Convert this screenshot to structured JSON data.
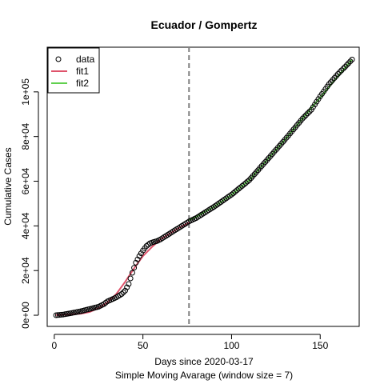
{
  "chart_data": {
    "type": "scatter",
    "title": "Ecuador / Gompertz",
    "xlabel": "Days since 2020-03-17",
    "xlabel2": "Simple Moving Avarage (window size = 7)",
    "ylabel": "Cumulative Cases",
    "xlim": [
      -4,
      172
    ],
    "ylim": [
      -5000,
      120000
    ],
    "x_ticks": [
      0,
      50,
      100,
      150
    ],
    "x_tick_labels": [
      "0",
      "50",
      "100",
      "150"
    ],
    "y_ticks": [
      0,
      20000,
      40000,
      60000,
      80000,
      100000
    ],
    "y_tick_labels": [
      "0e+00",
      "2e+04",
      "4e+04",
      "6e+04",
      "8e+04",
      "1e+05"
    ],
    "vline_x": 76,
    "vline_color": "#808080",
    "legend_position": "top-left",
    "legend": [
      {
        "label": "data",
        "type": "point",
        "color": "#000000"
      },
      {
        "label": "fit1",
        "type": "line",
        "color": "#DF536B"
      },
      {
        "label": "fit2",
        "type": "line",
        "color": "#61D04F"
      }
    ],
    "data_points": {
      "x": [
        1,
        5,
        10,
        15,
        20,
        25,
        28,
        30,
        35,
        38,
        40,
        42,
        44,
        46,
        48,
        50,
        52,
        54,
        56,
        58,
        60,
        65,
        70,
        76,
        80,
        90,
        100,
        110,
        120,
        130,
        140,
        145,
        150,
        155,
        160,
        165,
        168
      ],
      "y": [
        0,
        300,
        1000,
        1800,
        2800,
        3800,
        5000,
        6200,
        8000,
        9500,
        11000,
        14000,
        19000,
        23500,
        26500,
        29000,
        31000,
        32200,
        32800,
        33200,
        34000,
        36500,
        39000,
        42000,
        43500,
        48500,
        54000,
        60500,
        69500,
        78500,
        88000,
        92000,
        98000,
        103500,
        108000,
        112000,
        114500
      ]
    },
    "fit1": {
      "name": "fit1",
      "x": [
        1,
        5,
        10,
        15,
        20,
        25,
        30,
        35,
        40,
        45,
        50,
        55,
        60,
        65,
        70,
        76
      ],
      "y": [
        100,
        200,
        400,
        700,
        1500,
        3200,
        5800,
        9500,
        15000,
        21000,
        26500,
        30500,
        34000,
        36500,
        39000,
        41500
      ]
    },
    "fit2": {
      "name": "fit2",
      "x": [
        76,
        80,
        90,
        100,
        110,
        120,
        130,
        140,
        150,
        160,
        168
      ],
      "y": [
        42500,
        44000,
        48500,
        54000,
        60500,
        69500,
        78500,
        88000,
        97500,
        107000,
        114500
      ]
    }
  }
}
